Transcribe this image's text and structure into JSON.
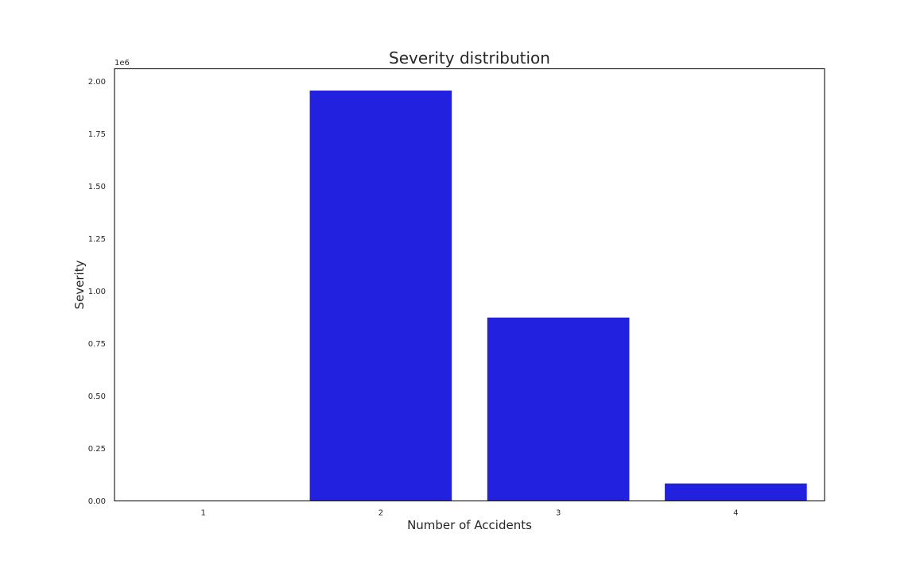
{
  "chart_data": {
    "type": "bar",
    "title": "Severity distribution",
    "xlabel": "Number of Accidents",
    "ylabel": "Severity",
    "categories": [
      "1",
      "2",
      "3",
      "4"
    ],
    "values": [
      0,
      1956000,
      874000,
      83000
    ],
    "ylim": [
      0,
      2060000
    ],
    "yticks": [
      0,
      250000,
      500000,
      750000,
      1000000,
      1250000,
      1500000,
      1750000,
      2000000
    ],
    "ytick_labels": [
      "0.00",
      "0.25",
      "0.50",
      "0.75",
      "1.00",
      "1.25",
      "1.50",
      "1.75",
      "2.00"
    ],
    "y_offset_label": "1e6",
    "bar_color": "#2121df",
    "grid": false,
    "legend": "none"
  }
}
